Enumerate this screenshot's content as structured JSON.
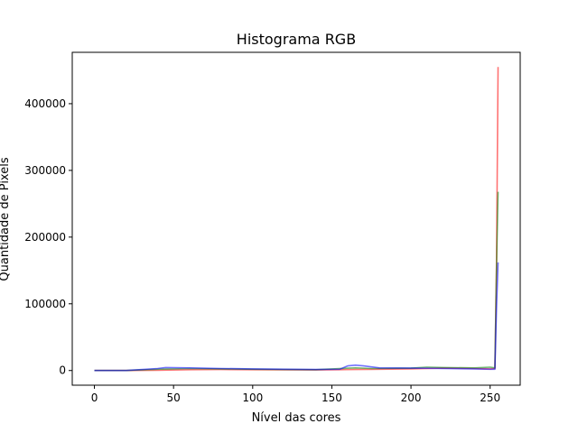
{
  "chart_data": {
    "type": "line",
    "title": "Histograma RGB",
    "xlabel": "Nível das cores",
    "ylabel": "Quantidade de Pixels",
    "xlim": [
      -14,
      269
    ],
    "ylim": [
      -22000,
      477000
    ],
    "x_ticks": [
      0,
      50,
      100,
      150,
      200,
      250
    ],
    "y_ticks": [
      0,
      100000,
      200000,
      300000,
      400000
    ],
    "x_tick_labels": [
      "0",
      "50",
      "100",
      "150",
      "200",
      "250"
    ],
    "y_tick_labels": [
      "0",
      "100000",
      "200000",
      "300000",
      "400000"
    ],
    "grid": false,
    "legend": "none",
    "series_colors": [
      "#ff0000",
      "#008000",
      "#0000ff"
    ],
    "series": [
      {
        "x": [
          0,
          20,
          40,
          60,
          80,
          100,
          120,
          140,
          155,
          165,
          175,
          200,
          210,
          220,
          240,
          250,
          253,
          254,
          255
        ],
        "values": [
          0,
          0,
          500,
          1200,
          1500,
          1300,
          1000,
          900,
          1200,
          1500,
          1800,
          2500,
          3000,
          3500,
          3000,
          2500,
          3000,
          150000,
          455000
        ]
      },
      {
        "x": [
          0,
          20,
          40,
          60,
          80,
          100,
          120,
          140,
          155,
          165,
          175,
          200,
          210,
          220,
          240,
          250,
          253,
          254,
          255
        ],
        "values": [
          0,
          0,
          2000,
          3000,
          2500,
          2000,
          1500,
          1200,
          3000,
          4000,
          3000,
          3500,
          5000,
          4500,
          4000,
          5000,
          4000,
          150000,
          268000
        ]
      },
      {
        "x": [
          0,
          20,
          40,
          45,
          60,
          80,
          100,
          120,
          140,
          155,
          160,
          165,
          170,
          180,
          200,
          220,
          240,
          250,
          253,
          254,
          255
        ],
        "values": [
          0,
          0,
          3000,
          4500,
          4000,
          3000,
          2500,
          2000,
          1500,
          2000,
          7000,
          8000,
          7000,
          4000,
          3500,
          3000,
          2500,
          2000,
          2000,
          90000,
          162000
        ]
      }
    ]
  }
}
